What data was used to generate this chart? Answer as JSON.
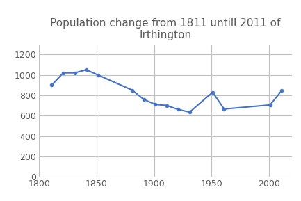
{
  "years": [
    1811,
    1821,
    1831,
    1841,
    1851,
    1881,
    1891,
    1901,
    1911,
    1921,
    1931,
    1951,
    1961,
    2001,
    2011
  ],
  "population": [
    900,
    1020,
    1020,
    1050,
    1000,
    850,
    760,
    710,
    700,
    660,
    635,
    830,
    665,
    705,
    845
  ],
  "title": "Population change from 1811 untill 2011 of\nIrthington",
  "xlim": [
    1800,
    2020
  ],
  "ylim": [
    0,
    1300
  ],
  "yticks": [
    0,
    200,
    400,
    600,
    800,
    1000,
    1200
  ],
  "xticks": [
    1800,
    1850,
    1900,
    1950,
    2000
  ],
  "line_color": "#4472C4",
  "marker_color": "#4472C4",
  "title_color": "#595959",
  "title_fontsize": 11,
  "tick_label_color": "#595959",
  "tick_label_fontsize": 9,
  "grid_color": "#C0C0C0",
  "background_color": "#FFFFFF"
}
